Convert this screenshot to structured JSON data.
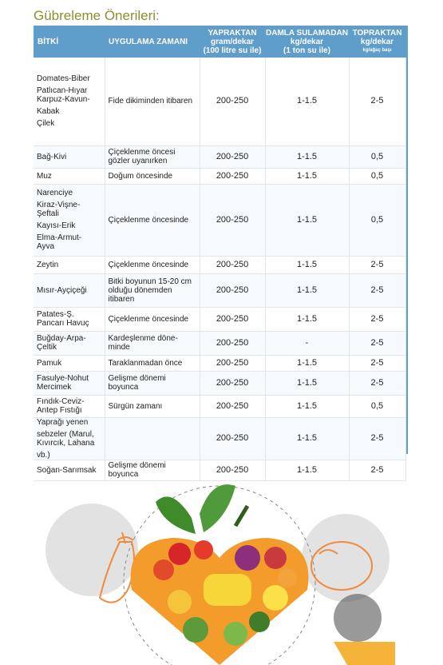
{
  "heading": "Gübreleme Önerileri:",
  "table": {
    "headers": {
      "bitki": "BİTKİ",
      "uygulama": "UYGULAMA ZAMANI",
      "yaprak_1": "YAPRAKTAN",
      "yaprak_2": "gram/dekar",
      "yaprak_3": "(100 litre su ile)",
      "damla_1": "DAMLA SULAMADAN",
      "damla_2": "kg/dekar",
      "damla_3": "(1 ton su ile)",
      "topraktan_1": "TOPRAKTAN",
      "topraktan_2": "kg/dekar",
      "topraktan_3": "kg/ağaç başı"
    },
    "rows": [
      {
        "crops": [
          "Domates-Biber",
          "Patlıcan-Hıyar",
          "Karpuz-Kavun-",
          "Kabak",
          "Çilek"
        ],
        "time": [
          "Fide dikiminden itibaren"
        ],
        "leaf": "200-250",
        "drip": "1-1.5",
        "soil": "2-5"
      },
      {
        "crops": [
          "Bağ-Kivi"
        ],
        "time": [
          "Çiçeklenme öncesi",
          "gözler uyanırken"
        ],
        "leaf": "200-250",
        "drip": "1-1.5",
        "soil": "0,5"
      },
      {
        "crops": [
          "Muz"
        ],
        "time": [
          "Doğum öncesinde"
        ],
        "leaf": "200-250",
        "drip": "1-1.5",
        "soil": "0,5"
      },
      {
        "crops": [
          "Narenciye",
          "Kiraz-Vişne-",
          "Şeftali",
          "Kayısı-Erik",
          "Elma-Armut-",
          "Ayva"
        ],
        "time": [
          "Çiçeklenme öncesinde"
        ],
        "leaf": "200-250",
        "drip": "1-1.5",
        "soil": "0,5"
      },
      {
        "crops": [
          "Zeytin"
        ],
        "time": [
          "Çiçeklenme öncesinde"
        ],
        "leaf": "200-250",
        "drip": "1-1.5",
        "soil": "2-5"
      },
      {
        "crops": [
          "Mısır-Ayçiçeği"
        ],
        "time": [
          "Bitki boyunun 15-20 cm",
          "olduğu dönemden",
          "itibaren"
        ],
        "leaf": "200-250",
        "drip": "1-1.5",
        "soil": "2-5"
      },
      {
        "crops": [
          "Patates-Ş.",
          "Pancarı Havuç"
        ],
        "time": [
          "Çiçeklenme öncesinde"
        ],
        "leaf": "200-250",
        "drip": "1-1.5",
        "soil": "2-5"
      },
      {
        "crops": [
          "Buğday-Arpa-",
          "Çeltik"
        ],
        "time": [
          "Kardeşlenme döne-",
          "minde"
        ],
        "leaf": "200-250",
        "drip": "-",
        "soil": "2-5"
      },
      {
        "crops": [
          "Pamuk"
        ],
        "time": [
          "Taraklanmadan önce"
        ],
        "leaf": "200-250",
        "drip": "1-1.5",
        "soil": "2-5"
      },
      {
        "crops": [
          "Fasulye-Nohut",
          "Mercimek"
        ],
        "time": [
          "Gelişme dönemi",
          "boyunca"
        ],
        "leaf": "200-250",
        "drip": "1-1.5",
        "soil": "2-5"
      },
      {
        "crops": [
          "Fındık-Ceviz-",
          "Antep Fıstığı"
        ],
        "time": [
          "Sürgün zamanı"
        ],
        "leaf": "200-250",
        "drip": "1-1.5",
        "soil": "0,5"
      },
      {
        "crops": [
          "Yaprağı yenen",
          "sebzeler (Marul,",
          "Kıvırcık, Lahana",
          "vb.)"
        ],
        "time": [
          ""
        ],
        "leaf": "200-250",
        "drip": "1-1.5",
        "soil": "2-5"
      },
      {
        "crops": [
          "Soğan-Sarımsak"
        ],
        "time": [
          "Gelişme dönemi",
          "boyunca"
        ],
        "leaf": "200-250",
        "drip": "1-1.5",
        "soil": "2-5"
      }
    ]
  },
  "colors": {
    "heading": "#8f8d2e",
    "header_bg": "#5f9ecb",
    "header_text": "#ffffff"
  },
  "illustration": {
    "icons": [
      "vegetable-heart-icon",
      "eggplant-icon",
      "orange-icon",
      "tomato-icon"
    ]
  }
}
